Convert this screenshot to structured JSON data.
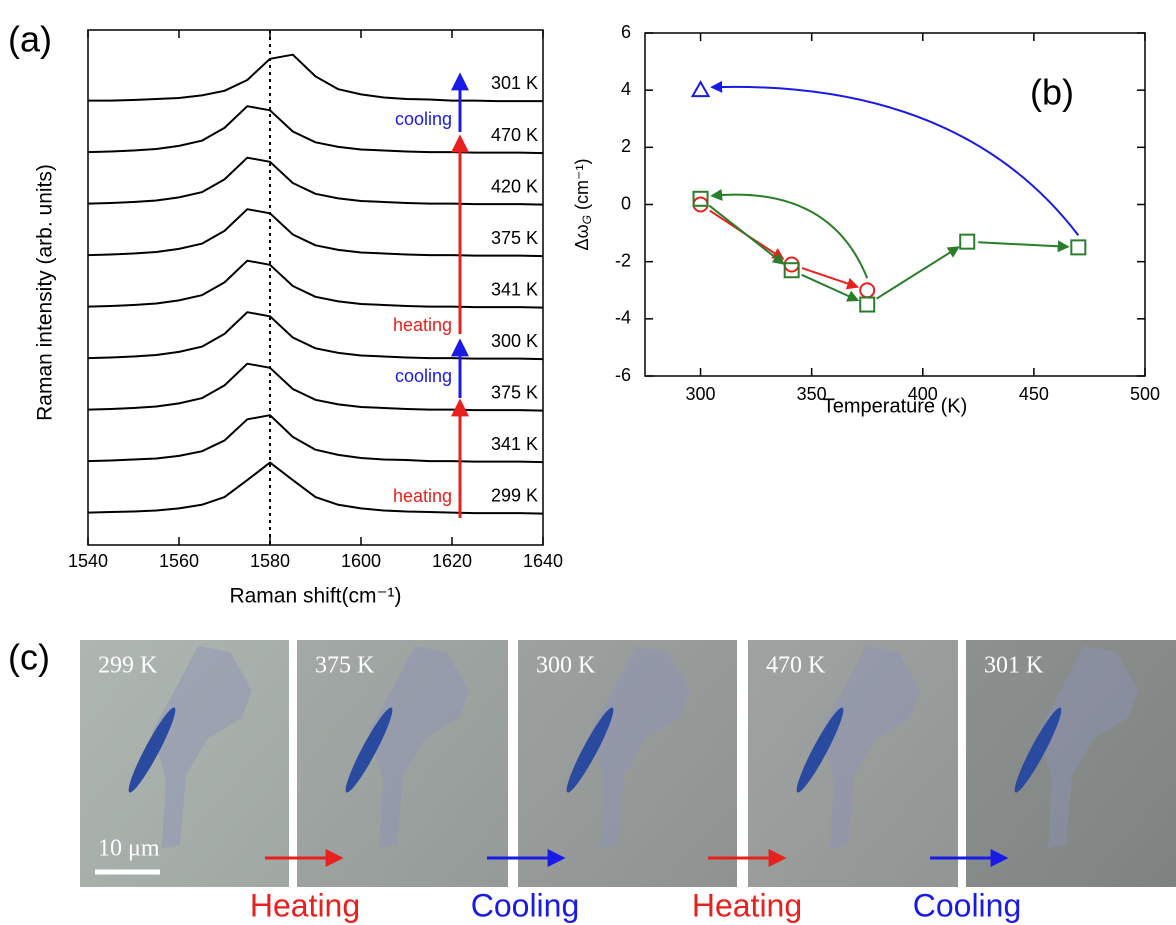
{
  "panel_labels": [
    "(a)",
    "(b)",
    "(c)"
  ],
  "chart_data": [
    {
      "type": "line",
      "xlabel": "Raman shift(cm⁻¹)",
      "ylabel": "Raman intensity (arb. units)",
      "x": [
        1540,
        1545,
        1550,
        1555,
        1560,
        1565,
        1570,
        1575,
        1580,
        1585,
        1590,
        1595,
        1600,
        1605,
        1610,
        1615,
        1620,
        1625,
        1630,
        1635,
        1640
      ],
      "xlim": [
        1540,
        1640
      ],
      "xticks": [
        1540,
        1560,
        1580,
        1600,
        1620,
        1640
      ],
      "ylim": [
        0,
        10
      ],
      "reference_line_x": 1580,
      "series": [
        {
          "name": "299 K",
          "color": "#000000",
          "values": [
            0.63,
            0.64,
            0.65,
            0.67,
            0.71,
            0.78,
            0.93,
            1.26,
            1.6,
            1.26,
            0.93,
            0.78,
            0.71,
            0.67,
            0.65,
            0.64,
            0.63,
            0.62,
            0.62,
            0.62,
            0.61
          ]
        },
        {
          "name": "341 K",
          "color": "#000000",
          "values": [
            1.63,
            1.64,
            1.66,
            1.68,
            1.73,
            1.82,
            2.03,
            2.44,
            2.52,
            2.1,
            1.85,
            1.75,
            1.69,
            1.66,
            1.65,
            1.63,
            1.63,
            1.62,
            1.62,
            1.62,
            1.61
          ]
        },
        {
          "name": "375 K",
          "color": "#000000",
          "values": [
            2.63,
            2.64,
            2.66,
            2.69,
            2.75,
            2.85,
            3.1,
            3.52,
            3.44,
            3.03,
            2.82,
            2.73,
            2.68,
            2.66,
            2.64,
            2.63,
            2.63,
            2.62,
            2.62,
            2.62,
            2.61
          ]
        },
        {
          "name": "300 K",
          "color": "#000000",
          "values": [
            3.63,
            3.64,
            3.66,
            3.69,
            3.75,
            3.85,
            4.1,
            4.52,
            4.44,
            4.03,
            3.82,
            3.73,
            3.68,
            3.66,
            3.64,
            3.63,
            3.63,
            3.62,
            3.62,
            3.62,
            3.61
          ]
        },
        {
          "name": "341 K",
          "color": "#000000",
          "values": [
            4.63,
            4.64,
            4.66,
            4.69,
            4.75,
            4.85,
            5.1,
            5.52,
            5.44,
            5.03,
            4.82,
            4.73,
            4.68,
            4.66,
            4.64,
            4.63,
            4.63,
            4.62,
            4.62,
            4.62,
            4.61
          ]
        },
        {
          "name": "375 K",
          "color": "#000000",
          "values": [
            5.63,
            5.64,
            5.66,
            5.69,
            5.75,
            5.85,
            6.1,
            6.52,
            6.44,
            6.03,
            5.82,
            5.73,
            5.68,
            5.66,
            5.64,
            5.63,
            5.63,
            5.62,
            5.62,
            5.62,
            5.61
          ]
        },
        {
          "name": "420 K",
          "color": "#000000",
          "values": [
            6.63,
            6.64,
            6.66,
            6.69,
            6.75,
            6.85,
            7.1,
            7.52,
            7.44,
            7.03,
            6.82,
            6.73,
            6.68,
            6.66,
            6.64,
            6.63,
            6.63,
            6.62,
            6.62,
            6.62,
            6.61
          ]
        },
        {
          "name": "470 K",
          "color": "#000000",
          "values": [
            7.63,
            7.64,
            7.66,
            7.69,
            7.75,
            7.85,
            8.1,
            8.52,
            8.44,
            8.03,
            7.82,
            7.73,
            7.68,
            7.66,
            7.64,
            7.63,
            7.63,
            7.62,
            7.62,
            7.62,
            7.61
          ]
        },
        {
          "name": "301 K",
          "color": "#000000",
          "values": [
            8.63,
            8.63,
            8.64,
            8.66,
            8.68,
            8.73,
            8.82,
            9.03,
            9.44,
            9.52,
            9.1,
            8.85,
            8.75,
            8.69,
            8.66,
            8.65,
            8.63,
            8.63,
            8.62,
            8.62,
            8.62
          ]
        }
      ],
      "annotations": [
        {
          "text": "heating",
          "color": "#e8201e"
        },
        {
          "text": "cooling",
          "color": "#1a1ae6"
        },
        {
          "text": "heating",
          "color": "#e8201e"
        },
        {
          "text": "cooling",
          "color": "#1a1ae6"
        }
      ]
    },
    {
      "type": "scatter",
      "xlabel": "Temperature (K)",
      "ylabel": {
        "main": "Δω",
        "sub": "G",
        "unit": "(cm⁻¹)"
      },
      "xlim": [
        275,
        500
      ],
      "xticks": [
        300,
        350,
        400,
        450,
        500
      ],
      "ylim": [
        -6,
        6
      ],
      "yticks": [
        -6,
        -4,
        -2,
        0,
        2,
        4,
        6
      ],
      "series": [
        {
          "marker": "circle",
          "color": "#e8201e",
          "x": [
            300,
            341,
            375
          ],
          "values": [
            0,
            -2.1,
            -3
          ]
        },
        {
          "marker": "square",
          "color": "#2a7d2a",
          "x": [
            300,
            341,
            375,
            420,
            470
          ],
          "values": [
            0.2,
            -2.3,
            -3.5,
            -1.3,
            -1.5
          ]
        },
        {
          "marker": "triangle",
          "color": "#1a1ae6",
          "x": [
            300
          ],
          "values": [
            4
          ]
        }
      ]
    }
  ],
  "panel_c": {
    "images": [
      "299 K",
      "375 K",
      "300 K",
      "470 K",
      "301 K"
    ],
    "scale_bar": "10 μm",
    "transitions": [
      {
        "text": "Heating",
        "color": "#e8201e"
      },
      {
        "text": "Cooling",
        "color": "#1a1ae6"
      },
      {
        "text": "Heating",
        "color": "#e8201e"
      },
      {
        "text": "Cooling",
        "color": "#1a1ae6"
      }
    ]
  }
}
